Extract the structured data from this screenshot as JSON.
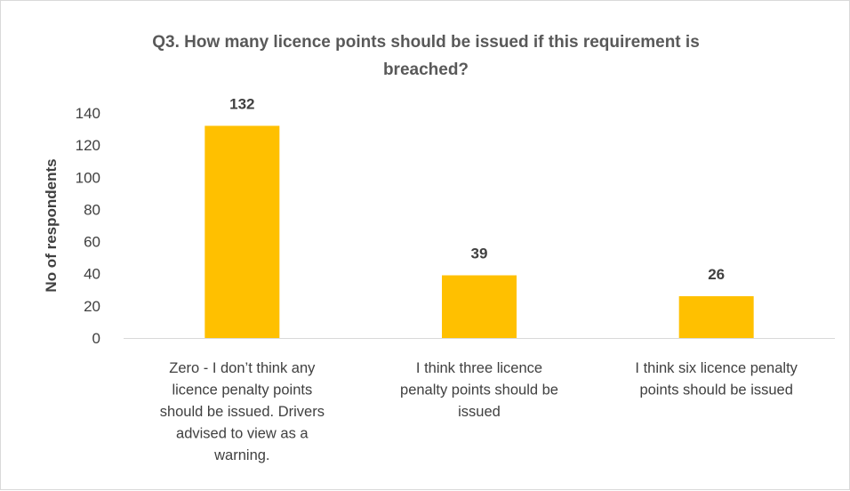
{
  "chart_data": {
    "type": "bar",
    "title_lines": [
      "Q3. How many licence points should be issued if this requirement is",
      "breached?"
    ],
    "ylabel": "No of respondents",
    "xlabel": "",
    "ylim": [
      0,
      140
    ],
    "yticks": [
      0,
      20,
      40,
      60,
      80,
      100,
      120,
      140
    ],
    "grid": false,
    "legend": "none",
    "bar_color": "#ffc000",
    "categories": [
      [
        "Zero - I don’t think any",
        "licence penalty points",
        "should be issued. Drivers",
        "advised to view as a",
        "warning."
      ],
      [
        "I think three licence",
        "penalty points should be",
        "issued"
      ],
      [
        "I think six licence penalty",
        "points should be issued"
      ]
    ],
    "values": [
      132,
      39,
      26
    ],
    "data_labels": [
      "132",
      "39",
      "26"
    ]
  }
}
